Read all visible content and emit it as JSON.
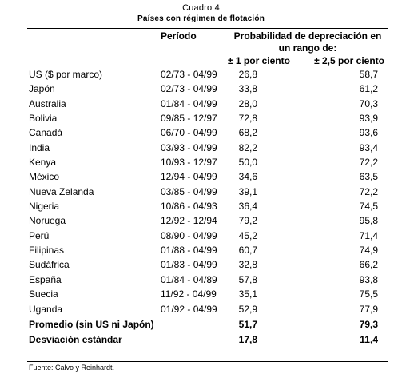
{
  "caption": {
    "number": "Cuadro 4",
    "title": "Países con régimen de flotación"
  },
  "headers": {
    "period": "Período",
    "probability": "Probabilidad de depreciación en un rango de:",
    "col1": "± 1 por ciento",
    "col2": "± 2,5 por ciento"
  },
  "rows": [
    {
      "country": "US ($ por marco)",
      "period": "02/73 - 04/99",
      "v1": "26,8",
      "v2": "58,7"
    },
    {
      "country": "Japón",
      "period": "02/73 - 04/99",
      "v1": "33,8",
      "v2": "61,2"
    },
    {
      "country": "Australia",
      "period": "01/84 - 04/99",
      "v1": "28,0",
      "v2": "70,3"
    },
    {
      "country": "Bolivia",
      "period": "09/85 - 12/97",
      "v1": "72,8",
      "v2": "93,9"
    },
    {
      "country": "Canadá",
      "period": "06/70 - 04/99",
      "v1": "68,2",
      "v2": "93,6"
    },
    {
      "country": "India",
      "period": "03/93 - 04/99",
      "v1": "82,2",
      "v2": "93,4"
    },
    {
      "country": "Kenya",
      "period": "10/93 - 12/97",
      "v1": "50,0",
      "v2": "72,2"
    },
    {
      "country": "México",
      "period": "12/94 - 04/99",
      "v1": "34,6",
      "v2": "63,5"
    },
    {
      "country": "Nueva Zelanda",
      "period": "03/85 - 04/99",
      "v1": "39,1",
      "v2": "72,2"
    },
    {
      "country": "Nigeria",
      "period": "10/86 - 04/93",
      "v1": "36,4",
      "v2": "74,5"
    },
    {
      "country": "Noruega",
      "period": "12/92 - 12/94",
      "v1": "79,2",
      "v2": "95,8"
    },
    {
      "country": "Perú",
      "period": "08/90 - 04/99",
      "v1": "45,2",
      "v2": "71,4"
    },
    {
      "country": "Filipinas",
      "period": "01/88 - 04/99",
      "v1": "60,7",
      "v2": "74,9"
    },
    {
      "country": "Sudáfrica",
      "period": "01/83 - 04/99",
      "v1": "32,8",
      "v2": "66,2"
    },
    {
      "country": "España",
      "period": "01/84 - 04/89",
      "v1": "57,8",
      "v2": "93,8"
    },
    {
      "country": "Suecia",
      "period": "11/92 - 04/99",
      "v1": "35,1",
      "v2": "75,5"
    },
    {
      "country": "Uganda",
      "period": "01/92 - 04/99",
      "v1": "52,9",
      "v2": "77,9"
    }
  ],
  "average": {
    "label": "Promedio (sin US ni Japón)",
    "v1": "51,7",
    "v2": "79,3"
  },
  "std_dev": {
    "label": "Desviación estándar",
    "v1": "17,8",
    "v2": "11,4"
  },
  "source": "Fuente: Calvo y Reinhardt."
}
